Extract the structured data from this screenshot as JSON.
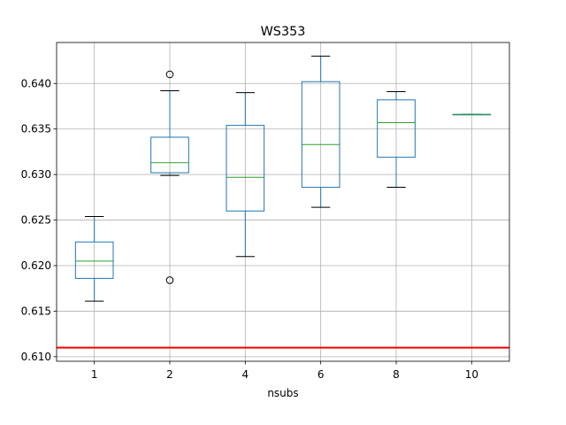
{
  "chart_data": {
    "type": "box",
    "title": "WS353",
    "xlabel": "nsubs",
    "ylabel": "",
    "categories": [
      "1",
      "2",
      "4",
      "6",
      "8",
      "10"
    ],
    "boxes": [
      {
        "category": "1",
        "whisker_low": 0.6161,
        "q1": 0.6186,
        "median": 0.6205,
        "q3": 0.6226,
        "whisker_high": 0.6254,
        "outliers": []
      },
      {
        "category": "2",
        "whisker_low": 0.6299,
        "q1": 0.6302,
        "median": 0.6313,
        "q3": 0.6341,
        "whisker_high": 0.6392,
        "outliers": [
          0.641,
          0.6184
        ]
      },
      {
        "category": "4",
        "whisker_low": 0.621,
        "q1": 0.626,
        "median": 0.6297,
        "q3": 0.6354,
        "whisker_high": 0.639,
        "outliers": []
      },
      {
        "category": "6",
        "whisker_low": 0.6264,
        "q1": 0.6286,
        "median": 0.6333,
        "q3": 0.6402,
        "whisker_high": 0.643,
        "outliers": []
      },
      {
        "category": "8",
        "whisker_low": 0.6286,
        "q1": 0.6319,
        "median": 0.6357,
        "q3": 0.6382,
        "whisker_high": 0.6391,
        "outliers": []
      },
      {
        "category": "10",
        "whisker_low": 0.6366,
        "q1": 0.6366,
        "median": 0.6366,
        "q3": 0.6366,
        "whisker_high": 0.6366,
        "outliers": []
      }
    ],
    "reference_line": {
      "y": 0.611,
      "color": "#ff0000"
    },
    "ylim": [
      0.6095,
      0.6445
    ],
    "yticks": [
      "0.610",
      "0.615",
      "0.620",
      "0.625",
      "0.630",
      "0.635",
      "0.640"
    ],
    "grid": true,
    "colors": {
      "box": "#1f77b4",
      "median": "#2ca02c",
      "whisker": "#000000",
      "grid": "#b0b0b0"
    }
  }
}
